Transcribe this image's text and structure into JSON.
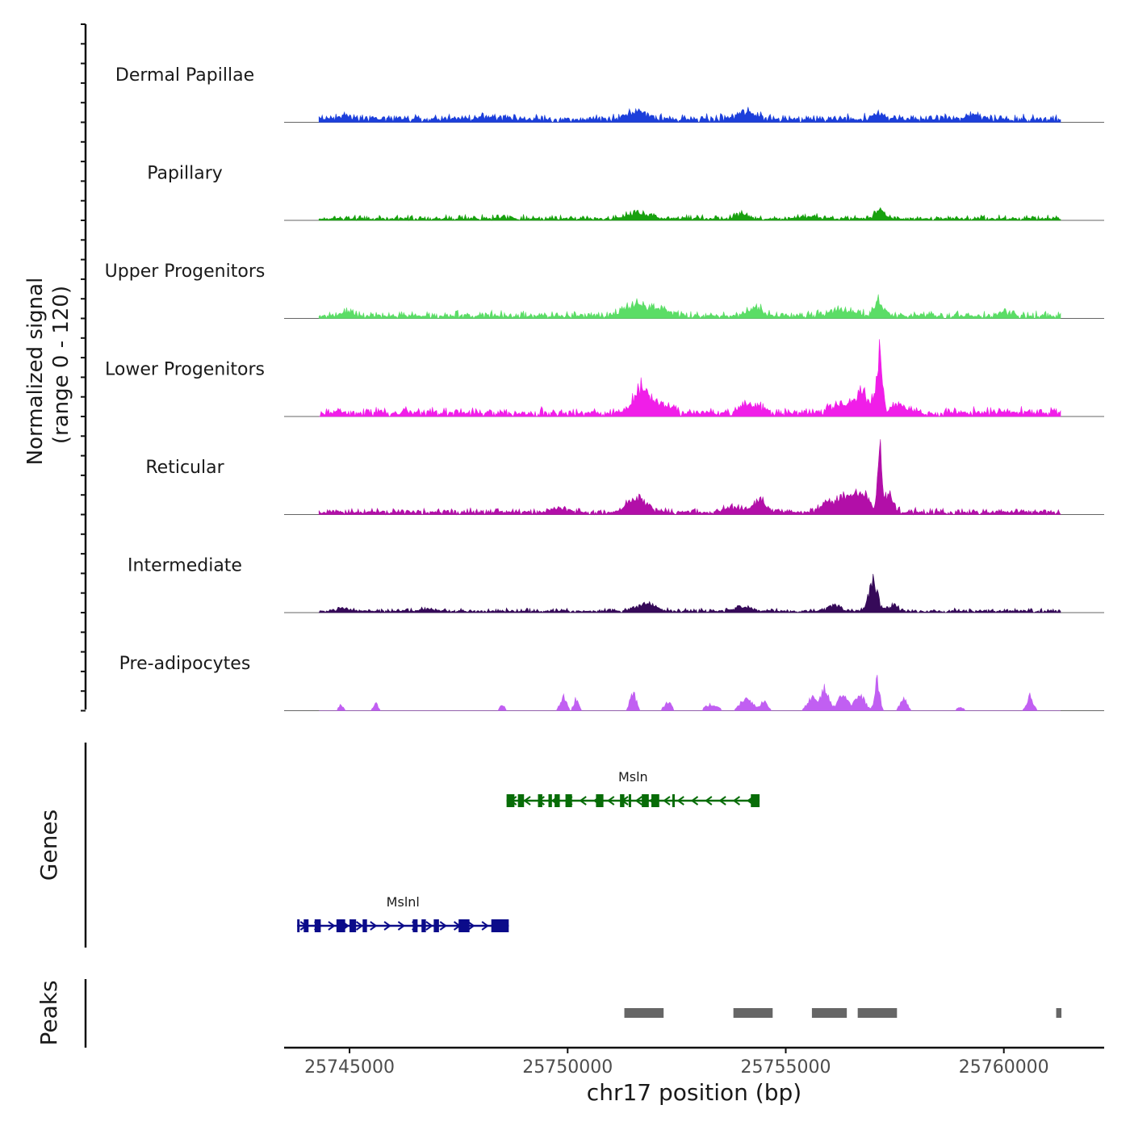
{
  "chart_data": {
    "type": "area",
    "title": "",
    "ylabel_line1": "Normalized signal",
    "ylabel_line2": "(range 0 - 120)",
    "xlabel": "chr17 position (bp)",
    "chromosome": "chr17",
    "xlim": [
      25743500,
      25762300
    ],
    "ylim": [
      0,
      120
    ],
    "xticks": [
      {
        "value": 25745000,
        "label": "25745000"
      },
      {
        "value": 25750000,
        "label": "25750000"
      },
      {
        "value": 25755000,
        "label": "25755000"
      },
      {
        "value": 25760000,
        "label": "25760000"
      }
    ],
    "signal_range": [
      25744300,
      25761300
    ],
    "tracks": [
      {
        "name": "Dermal Papillae",
        "color": "#1c3fdb",
        "baseline": 4,
        "noise": 4,
        "mode": "dense",
        "peaks": [
          [
            25751600,
            13,
            350
          ],
          [
            25754100,
            11,
            300
          ],
          [
            25757100,
            8,
            220
          ],
          [
            25744900,
            5,
            250
          ],
          [
            25748200,
            5,
            250
          ],
          [
            25759300,
            7,
            200
          ]
        ]
      },
      {
        "name": "Papillary",
        "color": "#18a10f",
        "baseline": 2,
        "noise": 3,
        "mode": "dense",
        "peaks": [
          [
            25751600,
            9,
            350
          ],
          [
            25754000,
            9,
            200
          ],
          [
            25757150,
            16,
            150
          ],
          [
            25755500,
            4,
            300
          ]
        ]
      },
      {
        "name": "Upper Progenitors",
        "color": "#5bdd66",
        "baseline": 3,
        "noise": 4,
        "mode": "dense",
        "peaks": [
          [
            25751600,
            20,
            350
          ],
          [
            25752200,
            10,
            250
          ],
          [
            25754300,
            13,
            250
          ],
          [
            25756300,
            10,
            400
          ],
          [
            25757150,
            25,
            150
          ],
          [
            25744900,
            6,
            250
          ],
          [
            25760000,
            7,
            200
          ]
        ]
      },
      {
        "name": "Lower Progenitors",
        "color": "#f01ee8",
        "baseline": 5,
        "noise": 4,
        "mode": "dense",
        "peaks": [
          [
            25751700,
            40,
            250
          ],
          [
            25752200,
            15,
            250
          ],
          [
            25754200,
            14,
            300
          ],
          [
            25756300,
            12,
            400
          ],
          [
            25757150,
            100,
            90
          ],
          [
            25756800,
            30,
            250
          ],
          [
            25757600,
            12,
            250
          ]
        ]
      },
      {
        "name": "Reticular",
        "color": "#b20fa8",
        "baseline": 3,
        "noise": 3,
        "mode": "dense",
        "peaks": [
          [
            25751600,
            25,
            300
          ],
          [
            25754400,
            20,
            200
          ],
          [
            25753800,
            8,
            300
          ],
          [
            25756200,
            22,
            400
          ],
          [
            25756700,
            30,
            250
          ],
          [
            25757150,
            105,
            60
          ],
          [
            25757350,
            30,
            150
          ],
          [
            25749800,
            7,
            250
          ]
        ]
      },
      {
        "name": "Intermediate",
        "color": "#360a59",
        "baseline": 2,
        "noise": 2,
        "mode": "dense",
        "peaks": [
          [
            25751800,
            12,
            300
          ],
          [
            25754000,
            7,
            300
          ],
          [
            25756100,
            9,
            200
          ],
          [
            25757000,
            55,
            130
          ],
          [
            25757450,
            8,
            200
          ],
          [
            25744800,
            5,
            200
          ],
          [
            25746800,
            5,
            200
          ]
        ]
      },
      {
        "name": "Pre-adipocytes",
        "color": "#c15ff2",
        "baseline": 0,
        "noise": 3,
        "mode": "sparse",
        "peaks": [
          [
            25744800,
            10,
            80
          ],
          [
            25745600,
            12,
            80
          ],
          [
            25748500,
            10,
            80
          ],
          [
            25749900,
            22,
            100
          ],
          [
            25750200,
            20,
            80
          ],
          [
            25751500,
            28,
            100
          ],
          [
            25752300,
            13,
            120
          ],
          [
            25753300,
            10,
            200
          ],
          [
            25754100,
            22,
            180
          ],
          [
            25754500,
            14,
            120
          ],
          [
            25755600,
            20,
            150
          ],
          [
            25755900,
            38,
            120
          ],
          [
            25756300,
            25,
            160
          ],
          [
            25756700,
            25,
            160
          ],
          [
            25757100,
            48,
            80
          ],
          [
            25757700,
            18,
            120
          ],
          [
            25759000,
            6,
            100
          ],
          [
            25760600,
            24,
            100
          ]
        ]
      }
    ],
    "genes": [
      {
        "name": "Msln",
        "strand": "-",
        "color": "#076c07",
        "start": 25748600,
        "end": 25754400,
        "row": 1,
        "exons": [
          [
            25748600,
            25748780
          ],
          [
            25748860,
            25749000
          ],
          [
            25749320,
            25749420
          ],
          [
            25749560,
            25749640
          ],
          [
            25749700,
            25749820
          ],
          [
            25749950,
            25750100
          ],
          [
            25750650,
            25750820
          ],
          [
            25751200,
            25751300
          ],
          [
            25751400,
            25751450
          ],
          [
            25751700,
            25751860
          ],
          [
            25751920,
            25752100
          ],
          [
            25752400,
            25752450
          ],
          [
            25754200,
            25754400
          ]
        ]
      },
      {
        "name": "Mslnl",
        "strand": "+",
        "color": "#0b0b8a",
        "start": 25743800,
        "end": 25748650,
        "row": 2,
        "exons": [
          [
            25743800,
            25743850
          ],
          [
            25743950,
            25744060
          ],
          [
            25744200,
            25744340
          ],
          [
            25744700,
            25744900
          ],
          [
            25745000,
            25745150
          ],
          [
            25745300,
            25745400
          ],
          [
            25746450,
            25746560
          ],
          [
            25746650,
            25746750
          ],
          [
            25746930,
            25747050
          ],
          [
            25747500,
            25747750
          ],
          [
            25748250,
            25748650
          ]
        ]
      }
    ],
    "peaks": [
      [
        25751300,
        25752200
      ],
      [
        25753800,
        25754700
      ],
      [
        25755600,
        25756400
      ],
      [
        25756650,
        25757550
      ],
      [
        25761200,
        25761320
      ]
    ],
    "panel_labels": {
      "genes": "Genes",
      "peaks": "Peaks"
    }
  }
}
